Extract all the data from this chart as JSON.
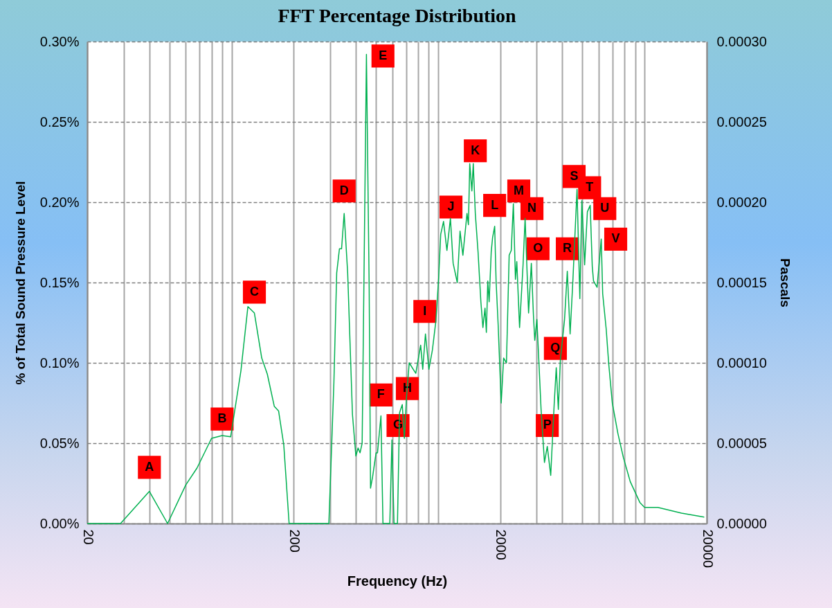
{
  "chart_data": {
    "type": "line",
    "title": "FFT Percentage Distribution",
    "xlabel": "Frequency (Hz)",
    "ylabel": "% of Total Sound Pressure Level",
    "y2label": "Pascals",
    "log": "x",
    "grid": true,
    "xlim": [
      20,
      20000
    ],
    "ylim": [
      0,
      0.3
    ],
    "y2lim": [
      0,
      0.0003
    ],
    "xticks": [
      20,
      {
        "value": 30,
        "label": null
      },
      {
        "value": 40,
        "label": null
      },
      {
        "value": 50,
        "label": null
      },
      {
        "value": 60,
        "label": null
      },
      {
        "value": 70,
        "label": null
      },
      {
        "value": 80,
        "label": null
      },
      {
        "value": 90,
        "label": null
      },
      {
        "value": 100,
        "label": null
      },
      200,
      {
        "value": 300,
        "label": null
      },
      {
        "value": 400,
        "label": null
      },
      {
        "value": 500,
        "label": null
      },
      {
        "value": 600,
        "label": null
      },
      {
        "value": 700,
        "label": null
      },
      {
        "value": 800,
        "label": null
      },
      {
        "value": 900,
        "label": null
      },
      {
        "value": 1000,
        "label": null
      },
      2000,
      {
        "value": 3000,
        "label": null
      },
      {
        "value": 4000,
        "label": null
      },
      {
        "value": 5000,
        "label": null
      },
      {
        "value": 6000,
        "label": null
      },
      {
        "value": 7000,
        "label": null
      },
      {
        "value": 8000,
        "label": null
      },
      {
        "value": 9000,
        "label": null
      },
      {
        "value": 10000,
        "label": null
      },
      20000
    ],
    "yticks": [
      {
        "value": 0,
        "label": "0.00%"
      },
      {
        "value": 0.05,
        "label": "0.05%"
      },
      {
        "value": 0.1,
        "label": "0.10%"
      },
      {
        "value": 0.15,
        "label": "0.15%"
      },
      {
        "value": 0.2,
        "label": "0.20%"
      },
      {
        "value": 0.25,
        "label": "0.25%"
      },
      {
        "value": 0.3,
        "label": "0.30%"
      }
    ],
    "y2ticks": [
      {
        "value": 0,
        "label": "0.00000"
      },
      {
        "value": 5e-05,
        "label": "0.00005"
      },
      {
        "value": 0.0001,
        "label": "0.00010"
      },
      {
        "value": 0.00015,
        "label": "0.00015"
      },
      {
        "value": 0.0002,
        "label": "0.00020"
      },
      {
        "value": 0.00025,
        "label": "0.00025"
      },
      {
        "value": 0.0003,
        "label": "0.00030"
      }
    ],
    "series": [
      {
        "color": "#00b050",
        "x": [
          20,
          25,
          29,
          40,
          49,
          60,
          68,
          80,
          90,
          99,
          111,
          120,
          129,
          140,
          149,
          161,
          169,
          179,
          190,
          250,
          296,
          313,
          323,
          333,
          341,
          351,
          365,
          385,
          400,
          410,
          419,
          429,
          450,
          464,
          471,
          482,
          501,
          509,
          529,
          541,
          584,
          598,
          612,
          636,
          651,
          671,
          687,
          703,
          725,
          780,
          824,
          843,
          869,
          903,
          939,
          976,
          1007,
          1030,
          1063,
          1104,
          1148,
          1183,
          1239,
          1278,
          1319,
          1381,
          1403,
          1424,
          1458,
          1481,
          1515,
          1562,
          1612,
          1649,
          1688,
          1714,
          1741,
          1768,
          1809,
          1837,
          1880,
          1910,
          1954,
          2022,
          2078,
          2144,
          2210,
          2262,
          2316,
          2370,
          2406,
          2482,
          2580,
          2640,
          2744,
          2830,
          2896,
          2940,
          3010,
          3080,
          3154,
          3276,
          3380,
          3512,
          3650,
          3736,
          3824,
          3912,
          4098,
          4226,
          4360,
          4496,
          4710,
          4860,
          4970,
          5126,
          5286,
          5454,
          5582,
          5660,
          5890,
          6170,
          6270,
          6520,
          6710,
          6980,
          7430,
          7900,
          8530,
          9500,
          10000,
          11600,
          15100,
          19460
        ],
        "values": [
          0,
          0,
          0,
          0.02,
          0,
          0.024,
          0.0345,
          0.053,
          0.0547,
          0.054,
          0.095,
          0.135,
          0.131,
          0.103,
          0.093,
          0.073,
          0.07,
          0.049,
          0,
          0,
          0,
          0.0875,
          0.156,
          0.171,
          0.171,
          0.193,
          0.156,
          0.068,
          0.042,
          0.047,
          0.044,
          0.05,
          0.292,
          0.146,
          0.022,
          0.029,
          0.044,
          0.044,
          0.067,
          0,
          0,
          0.052,
          0,
          0,
          0.069,
          0.074,
          0.053,
          0.078,
          0.1,
          0.0935,
          0.111,
          0.096,
          0.118,
          0.096,
          0.108,
          0.126,
          0.153,
          0.18,
          0.188,
          0.17,
          0.19,
          0.162,
          0.15,
          0.182,
          0.167,
          0.193,
          0.186,
          0.224,
          0.207,
          0.224,
          0.193,
          0.169,
          0.138,
          0.122,
          0.134,
          0.119,
          0.151,
          0.138,
          0.169,
          0.178,
          0.185,
          0.151,
          0.124,
          0.075,
          0.103,
          0.1,
          0.167,
          0.17,
          0.199,
          0.152,
          0.163,
          0.122,
          0.161,
          0.19,
          0.131,
          0.162,
          0.13,
          0.114,
          0.127,
          0.1,
          0.071,
          0.038,
          0.048,
          0.03,
          0.074,
          0.097,
          0.071,
          0.102,
          0.127,
          0.157,
          0.118,
          0.151,
          0.208,
          0.14,
          0.201,
          0.161,
          0.194,
          0.198,
          0.16,
          0.151,
          0.147,
          0.177,
          0.143,
          0.121,
          0.099,
          0.075,
          0.056,
          0.041,
          0.026,
          0.013,
          0.01,
          0.01,
          0.0065,
          0.004
        ]
      }
    ],
    "annotations": [
      {
        "text": "A",
        "x": 40,
        "y": 0.035
      },
      {
        "text": "B",
        "x": 90,
        "y": 0.065
      },
      {
        "text": "C",
        "x": 129,
        "y": 0.144
      },
      {
        "text": "D",
        "x": 351,
        "y": 0.207
      },
      {
        "text": "E",
        "x": 541,
        "y": 0.291
      },
      {
        "text": "F",
        "x": 529,
        "y": 0.08
      },
      {
        "text": "G",
        "x": 640,
        "y": 0.061
      },
      {
        "text": "H",
        "x": 710,
        "y": 0.084
      },
      {
        "text": "I",
        "x": 863,
        "y": 0.132
      },
      {
        "text": "J",
        "x": 1155,
        "y": 0.197
      },
      {
        "text": "K",
        "x": 1515,
        "y": 0.232
      },
      {
        "text": "L",
        "x": 1880,
        "y": 0.198
      },
      {
        "text": "M",
        "x": 2460,
        "y": 0.207
      },
      {
        "text": "N",
        "x": 2850,
        "y": 0.196
      },
      {
        "text": "O",
        "x": 3050,
        "y": 0.171
      },
      {
        "text": "P",
        "x": 3380,
        "y": 0.061
      },
      {
        "text": "Q",
        "x": 3700,
        "y": 0.109
      },
      {
        "text": "R",
        "x": 4226,
        "y": 0.171
      },
      {
        "text": "S",
        "x": 4560,
        "y": 0.216
      },
      {
        "text": "T",
        "x": 5420,
        "y": 0.209
      },
      {
        "text": "U",
        "x": 6420,
        "y": 0.196
      },
      {
        "text": "V",
        "x": 7250,
        "y": 0.177
      }
    ]
  }
}
